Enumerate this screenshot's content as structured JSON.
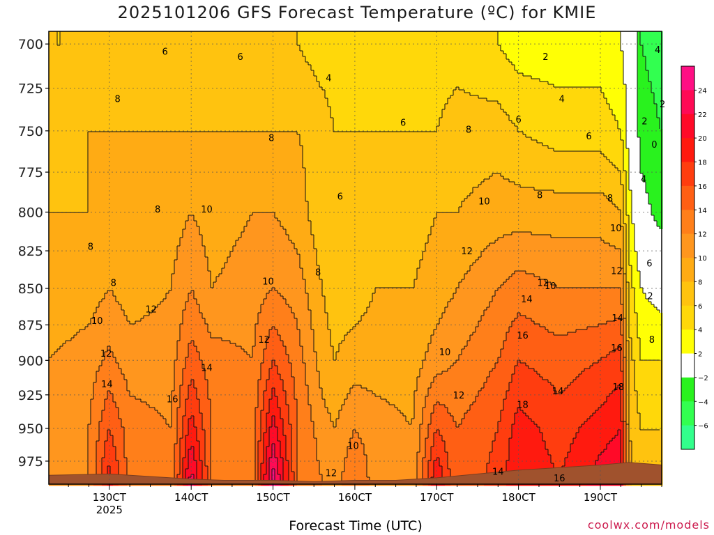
{
  "chart_data": {
    "type": "heatmap",
    "title": "2025101206 GFS Forecast Temperature (ºC) for KMIE",
    "xlabel": "Forecast Time (UTC)",
    "credit": "coolwx.com/models",
    "x_ticks": [
      {
        "label": "130CT",
        "day": 13
      },
      {
        "label": "140CT",
        "day": 14
      },
      {
        "label": "150CT",
        "day": 15
      },
      {
        "label": "160CT",
        "day": 16
      },
      {
        "label": "170CT",
        "day": 17
      },
      {
        "label": "180CT",
        "day": 18
      },
      {
        "label": "190CT",
        "day": 19
      }
    ],
    "x_year_label": "2025",
    "xlim": [
      12.26,
      19.75
    ],
    "y_ticks": [
      700,
      725,
      750,
      775,
      800,
      825,
      850,
      875,
      900,
      925,
      950,
      975
    ],
    "ylim": [
      993,
      693
    ],
    "y_axis": "pressure (hPa), log scale, inverted",
    "grid": true,
    "colorbar": {
      "tick_labels": [
        "24",
        "22",
        "20",
        "18",
        "16",
        "14",
        "12",
        "10",
        "8",
        "6",
        "4",
        "2",
        "−2",
        "−4",
        "−6"
      ],
      "bins": [
        {
          "lo": 24,
          "hi": 26,
          "color": "#ff0f84"
        },
        {
          "lo": 22,
          "hi": 24,
          "color": "#ff0a55"
        },
        {
          "lo": 20,
          "hi": 22,
          "color": "#ff0a28"
        },
        {
          "lo": 18,
          "hi": 20,
          "color": "#ff1a0f"
        },
        {
          "lo": 16,
          "hi": 18,
          "color": "#ff3d0f"
        },
        {
          "lo": 14,
          "hi": 16,
          "color": "#ff5f14"
        },
        {
          "lo": 12,
          "hi": 14,
          "color": "#ff7f1a"
        },
        {
          "lo": 10,
          "hi": 12,
          "color": "#ff961e"
        },
        {
          "lo": 8,
          "hi": 10,
          "color": "#ffab14"
        },
        {
          "lo": 6,
          "hi": 8,
          "color": "#ffc30f"
        },
        {
          "lo": 4,
          "hi": 6,
          "color": "#ffd80a"
        },
        {
          "lo": 2,
          "hi": 4,
          "color": "#ffff05"
        },
        {
          "lo": -2,
          "hi": 2,
          "color": "#ffffff"
        },
        {
          "lo": -4,
          "hi": -2,
          "color": "#29f21e"
        },
        {
          "lo": -6,
          "hi": -4,
          "color": "#32ff50"
        },
        {
          "lo": -8,
          "hi": -6,
          "color": "#32ff8c"
        }
      ]
    },
    "profiles": [
      {
        "day": 12.26,
        "p": [
          700,
          750,
          800,
          850,
          900,
          950,
          990
        ],
        "t": [
          6,
          7,
          8,
          8.5,
          10,
          11,
          11
        ]
      },
      {
        "day": 12.75,
        "p": [
          700,
          750,
          800,
          850,
          900,
          950,
          990
        ],
        "t": [
          6,
          8,
          8,
          9,
          11,
          12,
          12
        ]
      },
      {
        "day": 13.0,
        "p": [
          700,
          750,
          800,
          850,
          900,
          950,
          990
        ],
        "t": [
          6,
          8,
          9,
          10,
          12.5,
          16,
          19
        ]
      },
      {
        "day": 13.25,
        "p": [
          700,
          750,
          800,
          850,
          900,
          950,
          990
        ],
        "t": [
          6,
          8,
          8,
          9,
          11,
          13,
          13
        ]
      },
      {
        "day": 13.75,
        "p": [
          700,
          750,
          800,
          850,
          900,
          950,
          990
        ],
        "t": [
          6,
          8,
          9,
          10,
          11,
          12,
          12
        ]
      },
      {
        "day": 14.0,
        "p": [
          700,
          750,
          800,
          850,
          900,
          950,
          990
        ],
        "t": [
          6,
          8,
          10,
          12,
          15,
          19,
          23
        ]
      },
      {
        "day": 14.25,
        "p": [
          700,
          750,
          800,
          850,
          900,
          950,
          990
        ],
        "t": [
          6,
          8,
          9,
          10,
          13,
          14,
          14
        ]
      },
      {
        "day": 14.75,
        "p": [
          700,
          750,
          800,
          850,
          900,
          950,
          990
        ],
        "t": [
          6,
          8,
          10,
          11,
          12,
          13,
          13
        ]
      },
      {
        "day": 15.0,
        "p": [
          700,
          750,
          800,
          850,
          900,
          950,
          990
        ],
        "t": [
          6,
          8,
          10,
          12,
          16,
          21,
          25
        ]
      },
      {
        "day": 15.3,
        "p": [
          700,
          750,
          800,
          850,
          900,
          950,
          990
        ],
        "t": [
          6,
          8,
          9,
          11,
          13,
          14,
          14
        ]
      },
      {
        "day": 15.6,
        "p": [
          700,
          750,
          800,
          850,
          900,
          950,
          990
        ],
        "t": [
          5,
          7,
          6.5,
          8,
          9,
          11,
          12
        ]
      },
      {
        "day": 15.75,
        "p": [
          700,
          750,
          800,
          850,
          900,
          950,
          990
        ],
        "t": [
          5,
          6,
          6,
          7,
          8,
          10,
          11
        ]
      },
      {
        "day": 16.0,
        "p": [
          700,
          750,
          800,
          850,
          900,
          950,
          990
        ],
        "t": [
          5,
          6,
          7,
          7,
          9,
          12,
          14
        ]
      },
      {
        "day": 16.25,
        "p": [
          700,
          750,
          800,
          850,
          900,
          950,
          990
        ],
        "t": [
          5,
          6,
          7,
          8,
          9,
          11,
          11
        ]
      },
      {
        "day": 16.7,
        "p": [
          700,
          750,
          800,
          850,
          900,
          950,
          990
        ],
        "t": [
          5,
          6,
          7,
          8,
          9,
          10,
          10
        ]
      },
      {
        "day": 17.0,
        "p": [
          700,
          750,
          800,
          850,
          900,
          950,
          990
        ],
        "t": [
          5,
          6,
          8,
          9,
          11,
          16,
          20
        ]
      },
      {
        "day": 17.25,
        "p": [
          700,
          750,
          800,
          850,
          900,
          950,
          990
        ],
        "t": [
          5,
          7,
          8,
          10,
          12,
          14,
          14
        ]
      },
      {
        "day": 17.75,
        "p": [
          700,
          750,
          800,
          850,
          900,
          950,
          990
        ],
        "t": [
          4,
          7,
          9,
          12,
          14,
          16,
          17
        ]
      },
      {
        "day": 18.0,
        "p": [
          700,
          750,
          800,
          850,
          900,
          950,
          990
        ],
        "t": [
          3,
          6,
          9,
          13,
          16,
          19,
          20
        ]
      },
      {
        "day": 18.5,
        "p": [
          700,
          750,
          800,
          850,
          900,
          950,
          990
        ],
        "t": [
          3,
          5,
          9,
          12,
          15,
          17,
          18
        ]
      },
      {
        "day": 19.0,
        "p": [
          700,
          750,
          800,
          850,
          900,
          950,
          990
        ],
        "t": [
          3,
          5,
          9,
          12,
          16,
          19,
          21
        ]
      },
      {
        "day": 19.25,
        "p": [
          700,
          750,
          800,
          850,
          900,
          950,
          990
        ],
        "t": [
          2,
          4,
          8,
          12,
          17,
          20,
          22
        ]
      },
      {
        "day": 19.35,
        "p": [
          700,
          750,
          800,
          850,
          900,
          950,
          990
        ],
        "t": [
          1,
          1,
          3,
          5,
          7,
          8,
          9
        ]
      },
      {
        "day": 19.5,
        "p": [
          700,
          750,
          800,
          850,
          900,
          950,
          990
        ],
        "t": [
          -4,
          -3,
          -1,
          2,
          4,
          6,
          6
        ]
      },
      {
        "day": 19.75,
        "p": [
          700,
          750,
          800,
          850,
          900,
          950,
          990
        ],
        "t": [
          -5,
          -4,
          -3,
          1,
          4,
          6,
          6
        ]
      }
    ],
    "surface_pressure": [
      {
        "day": 12.26,
        "p": 986
      },
      {
        "day": 13.0,
        "p": 985
      },
      {
        "day": 14.0,
        "p": 989
      },
      {
        "day": 14.4,
        "p": 990
      },
      {
        "day": 15.0,
        "p": 990
      },
      {
        "day": 15.5,
        "p": 991
      },
      {
        "day": 16.0,
        "p": 990
      },
      {
        "day": 16.5,
        "p": 990
      },
      {
        "day": 17.0,
        "p": 988
      },
      {
        "day": 17.5,
        "p": 985
      },
      {
        "day": 18.0,
        "p": 982
      },
      {
        "day": 18.5,
        "p": 980
      },
      {
        "day": 19.0,
        "p": 978
      },
      {
        "day": 19.35,
        "p": 976
      },
      {
        "day": 19.75,
        "p": 978
      }
    ],
    "contour_labels": [
      {
        "text": "6",
        "day": 13.68,
        "p": 704
      },
      {
        "text": "6",
        "day": 14.6,
        "p": 707
      },
      {
        "text": "4",
        "day": 15.68,
        "p": 719
      },
      {
        "text": "6",
        "day": 16.59,
        "p": 745
      },
      {
        "text": "8",
        "day": 13.1,
        "p": 731
      },
      {
        "text": "8",
        "day": 14.98,
        "p": 754
      },
      {
        "text": "8",
        "day": 17.39,
        "p": 749
      },
      {
        "text": "6",
        "day": 18.0,
        "p": 743
      },
      {
        "text": "4",
        "day": 18.53,
        "p": 731
      },
      {
        "text": "6",
        "day": 18.86,
        "p": 753
      },
      {
        "text": "2",
        "day": 18.33,
        "p": 707
      },
      {
        "text": "6",
        "day": 15.82,
        "p": 790
      },
      {
        "text": "8",
        "day": 13.59,
        "p": 798
      },
      {
        "text": "10",
        "day": 14.19,
        "p": 798
      },
      {
        "text": "8",
        "day": 12.77,
        "p": 822
      },
      {
        "text": "8",
        "day": 13.05,
        "p": 846
      },
      {
        "text": "8",
        "day": 15.55,
        "p": 839
      },
      {
        "text": "10",
        "day": 14.94,
        "p": 845
      },
      {
        "text": "10",
        "day": 12.85,
        "p": 872
      },
      {
        "text": "12",
        "day": 13.51,
        "p": 864
      },
      {
        "text": "12",
        "day": 14.89,
        "p": 885
      },
      {
        "text": "12",
        "day": 12.96,
        "p": 895
      },
      {
        "text": "14",
        "day": 14.19,
        "p": 905
      },
      {
        "text": "14",
        "day": 12.97,
        "p": 917
      },
      {
        "text": "16",
        "day": 13.77,
        "p": 928
      },
      {
        "text": "10",
        "day": 17.58,
        "p": 793
      },
      {
        "text": "12",
        "day": 17.37,
        "p": 825
      },
      {
        "text": "8",
        "day": 18.26,
        "p": 789
      },
      {
        "text": "8",
        "day": 19.12,
        "p": 791
      },
      {
        "text": "12",
        "day": 18.3,
        "p": 846
      },
      {
        "text": "10",
        "day": 18.39,
        "p": 848
      },
      {
        "text": "14",
        "day": 18.1,
        "p": 857
      },
      {
        "text": "10",
        "day": 19.19,
        "p": 810
      },
      {
        "text": "12",
        "day": 19.2,
        "p": 838
      },
      {
        "text": "14",
        "day": 19.21,
        "p": 870
      },
      {
        "text": "16",
        "day": 19.2,
        "p": 891
      },
      {
        "text": "18",
        "day": 19.22,
        "p": 919
      },
      {
        "text": "16",
        "day": 18.05,
        "p": 882
      },
      {
        "text": "18",
        "day": 18.05,
        "p": 932
      },
      {
        "text": "14",
        "day": 18.48,
        "p": 922
      },
      {
        "text": "10",
        "day": 17.1,
        "p": 894
      },
      {
        "text": "12",
        "day": 17.27,
        "p": 925
      },
      {
        "text": "10",
        "day": 15.98,
        "p": 963
      },
      {
        "text": "12",
        "day": 15.71,
        "p": 984
      },
      {
        "text": "14",
        "day": 17.75,
        "p": 983
      },
      {
        "text": "16",
        "day": 18.5,
        "p": 988
      },
      {
        "text": "4",
        "day": 19.7,
        "p": 703
      },
      {
        "text": "2",
        "day": 19.76,
        "p": 734
      },
      {
        "text": "2",
        "day": 19.54,
        "p": 744
      },
      {
        "text": "0",
        "day": 19.66,
        "p": 758
      },
      {
        "text": "4",
        "day": 19.53,
        "p": 779
      },
      {
        "text": "6",
        "day": 19.6,
        "p": 833
      },
      {
        "text": "2",
        "day": 19.61,
        "p": 855
      },
      {
        "text": "8",
        "day": 19.63,
        "p": 885
      }
    ]
  }
}
